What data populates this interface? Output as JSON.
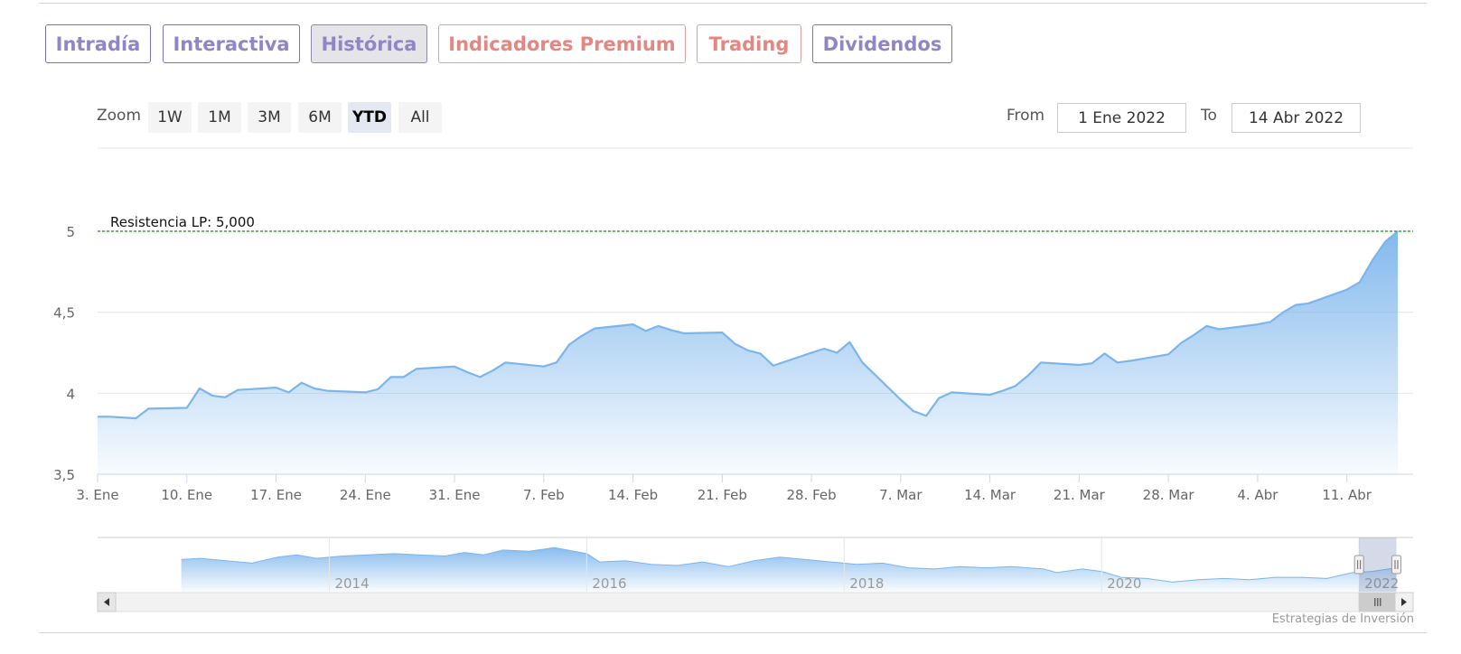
{
  "tabs": [
    {
      "label": "Intradía",
      "style": "normal"
    },
    {
      "label": "Interactiva",
      "style": "normal"
    },
    {
      "label": "Histórica",
      "style": "active"
    },
    {
      "label": "Indicadores Premium",
      "style": "red"
    },
    {
      "label": "Trading",
      "style": "red"
    },
    {
      "label": "Dividendos",
      "style": "normal"
    }
  ],
  "zoom": {
    "label": "Zoom",
    "buttons": [
      "1W",
      "1M",
      "3M",
      "6M",
      "YTD",
      "All"
    ],
    "selected": "YTD"
  },
  "range": {
    "from_label": "From",
    "from_value": "1 Ene 2022",
    "to_label": "To",
    "to_value": "14 Abr 2022"
  },
  "credit": "Estrategias de Inversión",
  "colors": {
    "line": "#7cb5ec",
    "fill_top": "#7cb5ec",
    "resistance": "#1a8a1a",
    "tab_purple": "#8e86c6",
    "tab_red": "#e48682"
  },
  "chart_data": {
    "type": "area",
    "ylim": [
      3.5,
      5
    ],
    "yticks": [
      "3,5",
      "4",
      "4,5",
      "5"
    ],
    "ytick_values": [
      3.5,
      4,
      4.5,
      5
    ],
    "xlim": [
      "2022-01-03",
      "2022-04-14"
    ],
    "xticks": [
      {
        "date": "2022-01-03",
        "label": "3. Ene"
      },
      {
        "date": "2022-01-10",
        "label": "10. Ene"
      },
      {
        "date": "2022-01-17",
        "label": "17. Ene"
      },
      {
        "date": "2022-01-24",
        "label": "24. Ene"
      },
      {
        "date": "2022-01-31",
        "label": "31. Ene"
      },
      {
        "date": "2022-02-07",
        "label": "7. Feb"
      },
      {
        "date": "2022-02-14",
        "label": "14. Feb"
      },
      {
        "date": "2022-02-21",
        "label": "21. Feb"
      },
      {
        "date": "2022-02-28",
        "label": "28. Feb"
      },
      {
        "date": "2022-03-07",
        "label": "7. Mar"
      },
      {
        "date": "2022-03-14",
        "label": "14. Mar"
      },
      {
        "date": "2022-03-21",
        "label": "21. Mar"
      },
      {
        "date": "2022-03-28",
        "label": "28. Mar"
      },
      {
        "date": "2022-04-04",
        "label": "4. Abr"
      },
      {
        "date": "2022-04-11",
        "label": "11. Abr"
      }
    ],
    "resistance": {
      "label": "Resistencia LP: 5,000",
      "value": 5.0
    },
    "series": [
      {
        "values": [
          [
            "2022-01-03",
            3.855
          ],
          [
            "2022-01-04",
            3.855
          ],
          [
            "2022-01-05",
            3.85
          ],
          [
            "2022-01-06",
            3.845
          ],
          [
            "2022-01-07",
            3.905
          ],
          [
            "2022-01-10",
            3.91
          ],
          [
            "2022-01-11",
            4.03
          ],
          [
            "2022-01-12",
            3.985
          ],
          [
            "2022-01-13",
            3.975
          ],
          [
            "2022-01-14",
            4.02
          ],
          [
            "2022-01-17",
            4.035
          ],
          [
            "2022-01-18",
            4.005
          ],
          [
            "2022-01-19",
            4.065
          ],
          [
            "2022-01-20",
            4.03
          ],
          [
            "2022-01-21",
            4.015
          ],
          [
            "2022-01-24",
            4.005
          ],
          [
            "2022-01-25",
            4.025
          ],
          [
            "2022-01-26",
            4.1
          ],
          [
            "2022-01-27",
            4.1
          ],
          [
            "2022-01-28",
            4.15
          ],
          [
            "2022-01-31",
            4.165
          ],
          [
            "2022-02-01",
            4.13
          ],
          [
            "2022-02-02",
            4.1
          ],
          [
            "2022-02-03",
            4.14
          ],
          [
            "2022-02-04",
            4.19
          ],
          [
            "2022-02-07",
            4.165
          ],
          [
            "2022-02-08",
            4.19
          ],
          [
            "2022-02-09",
            4.3
          ],
          [
            "2022-02-10",
            4.355
          ],
          [
            "2022-02-11",
            4.4
          ],
          [
            "2022-02-14",
            4.425
          ],
          [
            "2022-02-15",
            4.385
          ],
          [
            "2022-02-16",
            4.415
          ],
          [
            "2022-02-17",
            4.39
          ],
          [
            "2022-02-18",
            4.37
          ],
          [
            "2022-02-21",
            4.375
          ],
          [
            "2022-02-22",
            4.305
          ],
          [
            "2022-02-23",
            4.265
          ],
          [
            "2022-02-24",
            4.245
          ],
          [
            "2022-02-25",
            4.17
          ],
          [
            "2022-02-28",
            4.25
          ],
          [
            "2022-03-01",
            4.275
          ],
          [
            "2022-03-02",
            4.25
          ],
          [
            "2022-03-03",
            4.315
          ],
          [
            "2022-03-04",
            4.19
          ],
          [
            "2022-03-07",
            3.96
          ],
          [
            "2022-03-08",
            3.89
          ],
          [
            "2022-03-09",
            3.86
          ],
          [
            "2022-03-10",
            3.97
          ],
          [
            "2022-03-11",
            4.005
          ],
          [
            "2022-03-14",
            3.99
          ],
          [
            "2022-03-15",
            4.015
          ],
          [
            "2022-03-16",
            4.045
          ],
          [
            "2022-03-17",
            4.11
          ],
          [
            "2022-03-18",
            4.19
          ],
          [
            "2022-03-21",
            4.175
          ],
          [
            "2022-03-22",
            4.185
          ],
          [
            "2022-03-23",
            4.245
          ],
          [
            "2022-03-24",
            4.19
          ],
          [
            "2022-03-25",
            4.2
          ],
          [
            "2022-03-28",
            4.24
          ],
          [
            "2022-03-29",
            4.31
          ],
          [
            "2022-03-30",
            4.36
          ],
          [
            "2022-03-31",
            4.415
          ],
          [
            "2022-04-01",
            4.395
          ],
          [
            "2022-04-04",
            4.425
          ],
          [
            "2022-04-05",
            4.44
          ],
          [
            "2022-04-06",
            4.5
          ],
          [
            "2022-04-07",
            4.545
          ],
          [
            "2022-04-08",
            4.555
          ],
          [
            "2022-04-11",
            4.64
          ],
          [
            "2022-04-12",
            4.685
          ],
          [
            "2022-04-13",
            4.82
          ],
          [
            "2022-04-14",
            4.935
          ],
          [
            "2022-04-15",
            5.0
          ]
        ]
      }
    ]
  },
  "navigator": {
    "year_labels": [
      "2014",
      "2016",
      "2018",
      "2020",
      "2022"
    ],
    "values": [
      [
        2012.85,
        4.35
      ],
      [
        2013.0,
        4.4
      ],
      [
        2013.2,
        4.3
      ],
      [
        2013.4,
        4.2
      ],
      [
        2013.6,
        4.45
      ],
      [
        2013.75,
        4.55
      ],
      [
        2013.9,
        4.4
      ],
      [
        2014.1,
        4.5
      ],
      [
        2014.3,
        4.55
      ],
      [
        2014.5,
        4.6
      ],
      [
        2014.7,
        4.55
      ],
      [
        2014.9,
        4.5
      ],
      [
        2015.05,
        4.65
      ],
      [
        2015.2,
        4.55
      ],
      [
        2015.35,
        4.75
      ],
      [
        2015.55,
        4.7
      ],
      [
        2015.75,
        4.85
      ],
      [
        2015.9,
        4.7
      ],
      [
        2016.0,
        4.6
      ],
      [
        2016.1,
        4.25
      ],
      [
        2016.3,
        4.3
      ],
      [
        2016.5,
        4.15
      ],
      [
        2016.7,
        4.1
      ],
      [
        2016.9,
        4.25
      ],
      [
        2017.1,
        4.05
      ],
      [
        2017.3,
        4.3
      ],
      [
        2017.5,
        4.45
      ],
      [
        2017.7,
        4.35
      ],
      [
        2017.9,
        4.25
      ],
      [
        2018.1,
        4.15
      ],
      [
        2018.3,
        4.2
      ],
      [
        2018.5,
        4.0
      ],
      [
        2018.7,
        3.95
      ],
      [
        2018.9,
        4.05
      ],
      [
        2019.1,
        4.0
      ],
      [
        2019.3,
        4.05
      ],
      [
        2019.55,
        3.95
      ],
      [
        2019.65,
        3.8
      ],
      [
        2019.85,
        3.95
      ],
      [
        2020.0,
        3.85
      ],
      [
        2020.15,
        3.6
      ],
      [
        2020.35,
        3.55
      ],
      [
        2020.55,
        3.4
      ],
      [
        2020.75,
        3.5
      ],
      [
        2020.95,
        3.55
      ],
      [
        2021.15,
        3.5
      ],
      [
        2021.35,
        3.6
      ],
      [
        2021.55,
        3.6
      ],
      [
        2021.75,
        3.55
      ],
      [
        2021.95,
        3.8
      ],
      [
        2022.1,
        3.85
      ],
      [
        2022.29,
        4.0
      ]
    ]
  }
}
